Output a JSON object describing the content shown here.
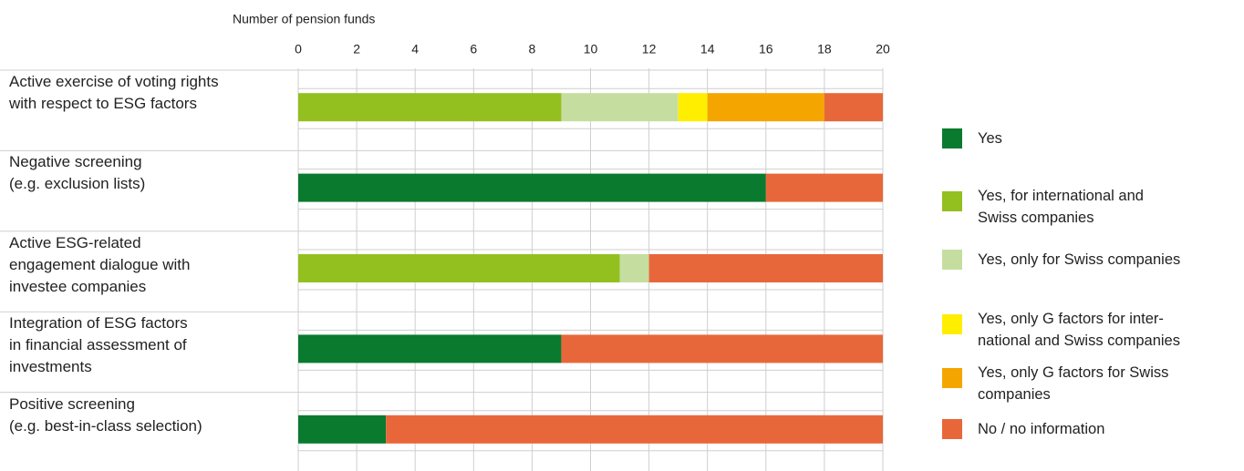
{
  "chart_data": {
    "type": "stacked_barh",
    "x_label": "Number of pension funds",
    "categories": [
      "Active exercise of voting rights\nwith respect to ESG factors",
      "Negative screening\n(e.g. exclusion lists)",
      "Active ESG-related\nengagement dialogue with\ninvestee companies",
      "Integration of ESG factors\nin financial assessment of\ninvestments",
      "Positive screening\n(e.g. best-in-class selection)"
    ],
    "series": [
      {
        "name": "Yes",
        "color": "#0a7a2e",
        "values": [
          0,
          16,
          0,
          9,
          3
        ]
      },
      {
        "name": "Yes, for international and\nSwiss companies",
        "color": "#93c01f",
        "values": [
          9,
          0,
          11,
          0,
          0
        ]
      },
      {
        "name": "Yes, only for Swiss companies",
        "color": "#c5dea0",
        "values": [
          4,
          0,
          1,
          0,
          0
        ]
      },
      {
        "name": "Yes, only G factors for inter-\nnational and Swiss companies",
        "color": "#ffee00",
        "values": [
          1,
          0,
          0,
          0,
          0
        ]
      },
      {
        "name": "Yes, only G factors for Swiss\ncompanies",
        "color": "#f5a500",
        "values": [
          4,
          0,
          0,
          0,
          0
        ]
      },
      {
        "name": "No / no information",
        "color": "#e8673a",
        "values": [
          2,
          4,
          8,
          11,
          17
        ]
      }
    ],
    "xlim": [
      0,
      20
    ],
    "xticks": [
      0,
      2,
      4,
      6,
      8,
      10,
      12,
      14,
      16,
      18,
      20
    ],
    "grid": true,
    "legend": "right"
  }
}
